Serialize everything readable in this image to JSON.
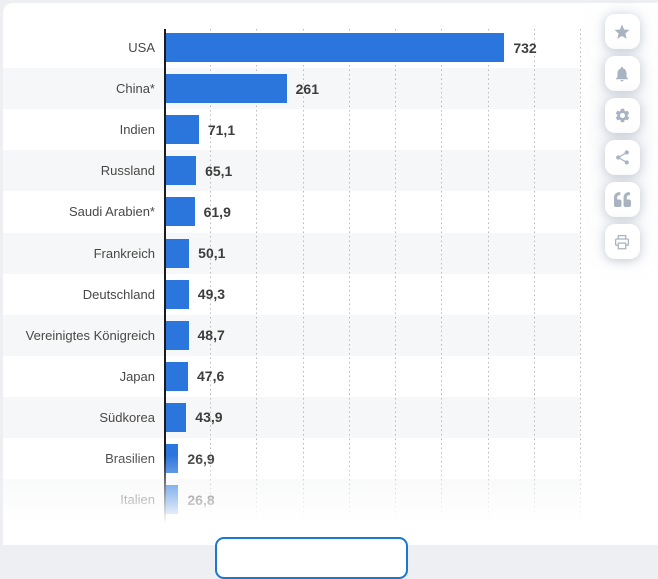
{
  "chart_data": {
    "type": "bar",
    "orientation": "horizontal",
    "title": "",
    "xlabel": "",
    "ylabel": "",
    "categories": [
      "USA",
      "China*",
      "Indien",
      "Russland",
      "Saudi Arabien*",
      "Frankreich",
      "Deutschland",
      "Vereinigtes Königreich",
      "Japan",
      "Südkorea",
      "Brasilien",
      "Italien"
    ],
    "values": [
      732,
      261,
      71.1,
      65.1,
      61.9,
      50.1,
      49.3,
      48.7,
      47.6,
      43.9,
      26.9,
      26.8
    ],
    "value_labels": [
      "732",
      "261",
      "71,1",
      "65,1",
      "61,9",
      "50,1",
      "49,3",
      "48,7",
      "47,6",
      "43,9",
      "26,9",
      "26,8"
    ],
    "xlim": [
      0,
      900
    ],
    "grid_interval": 100,
    "grid": true,
    "legend": false,
    "zebra_stripes": true,
    "last_row_faded": true,
    "bar_color": "#2b76dc",
    "stripe_color": "#f6f7f8",
    "axis_color": "#191b1f",
    "label_color": "#484848",
    "value_color": "#3d3d3d"
  },
  "toolbar": {
    "buttons": [
      {
        "name": "favorite",
        "icon": "star-icon"
      },
      {
        "name": "notifications",
        "icon": "bell-icon"
      },
      {
        "name": "settings",
        "icon": "gear-icon"
      },
      {
        "name": "share",
        "icon": "share-icon"
      },
      {
        "name": "cite",
        "icon": "quote-icon"
      },
      {
        "name": "print",
        "icon": "printer-icon"
      }
    ]
  },
  "footer": {
    "more_button_label": ""
  }
}
